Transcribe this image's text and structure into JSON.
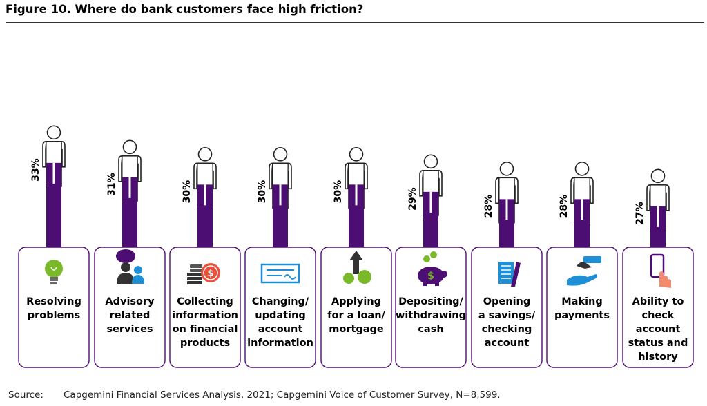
{
  "title": "Figure 10. Where do bank customers face high friction?",
  "source": {
    "label": "Source:",
    "text": "Capgemini Financial Services Analysis, 2021; Capgemini Voice of Customer Survey, N=8,599."
  },
  "colors": {
    "bar": "#4d0e73",
    "card_border": "#4d0e73",
    "figure_outline": "#222222"
  },
  "chart_data": {
    "type": "bar",
    "title": "Figure 10. Where do bank customers face high friction?",
    "categories": [
      "Resolving problems",
      "Advisory related services",
      "Collecting information on financial products",
      "Changing/ updating account information",
      "Applying for a loan/ mortgage",
      "Depositing/ withdrawing cash",
      "Opening a savings/ checking account",
      "Making payments",
      "Ability to check account status and history"
    ],
    "category_lines": [
      [
        "Resolving",
        "problems"
      ],
      [
        "Advisory",
        "related",
        "services"
      ],
      [
        "Collecting",
        "information",
        "on financial",
        "products"
      ],
      [
        "Changing/",
        "updating",
        "account",
        "information"
      ],
      [
        "Applying",
        "for a loan/",
        "mortgage"
      ],
      [
        "Depositing/",
        "withdrawing",
        "cash"
      ],
      [
        "Opening",
        "a savings/",
        "checking",
        "account"
      ],
      [
        "Making",
        "payments"
      ],
      [
        "Ability to",
        "check",
        "account",
        "status and",
        "history"
      ]
    ],
    "icons": [
      "lightbulb-icon",
      "advisor-people-icon",
      "coins-stack-icon",
      "cheque-icon",
      "loan-growth-icon",
      "piggy-bank-icon",
      "account-form-icon",
      "payment-hand-icon",
      "mobile-touch-icon"
    ],
    "values": [
      33,
      31,
      30,
      30,
      30,
      29,
      28,
      28,
      27
    ],
    "data_labels": [
      "33%",
      "31%",
      "30%",
      "30%",
      "30%",
      "29%",
      "28%",
      "28%",
      "27%"
    ],
    "ylabel": "",
    "xlabel": ""
  }
}
